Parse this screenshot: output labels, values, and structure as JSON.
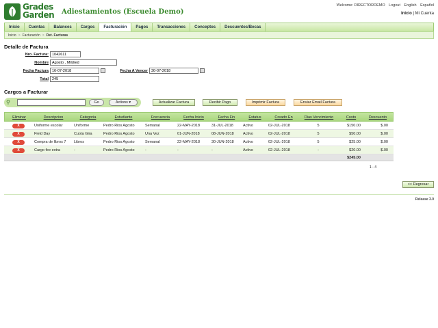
{
  "logo": {
    "line1": "Grades",
    "line2": "Garden"
  },
  "app_title": "Adiestamientos (Escuela Demo)",
  "topbar": {
    "welcome": "Welcome: DIRECTORDEMO",
    "logout": "Logout",
    "english": "English",
    "espanol": "Español",
    "inicio": "Inicio",
    "sep": "|",
    "mi_cuenta": "Mi Cuenta"
  },
  "nav": [
    "Inicio",
    "Cuentas",
    "Balances",
    "Cargos",
    "Facturación",
    "Pagos",
    "Transacciones",
    "Conceptos",
    "Descuentos/Becas"
  ],
  "nav_active": "Facturación",
  "breadcrumb": [
    "Inicio",
    "Facturación",
    "Det. Facturas"
  ],
  "breadcrumb_sep": ">",
  "detalle": {
    "title": "Detalle de Factura",
    "nro_label": "Nro. Factura:",
    "nro_value": "1042611",
    "nombre_label": "Nombre",
    "nombre_value": "Agosto , Mildred",
    "fecha_label": "Fecha Factura",
    "fecha_value": "16-07-2018",
    "vence_label": "Fecha A Vencer",
    "vence_value": "30-07-2018",
    "total_label": "Total",
    "total_value": "245"
  },
  "cargos": {
    "title": "Cargos a Facturar",
    "go": "Go",
    "actions": "Actions ▾",
    "buttons": {
      "actualizar": "Actualizar Factura",
      "recibir": "Recibir Pago",
      "imprimir": "Imprimir Factura",
      "email": "Enviar Email Factura"
    }
  },
  "grid": {
    "headers": [
      "Eliminar",
      "Descripcion",
      "Categoria",
      "Estudiante",
      "Frecuencia",
      "Fecha Inicio",
      "Fecha Fin",
      "Estatus",
      "Creado En",
      "Dias Vencimiento",
      "Costo",
      "Descuento"
    ],
    "delete_label": "X",
    "rows": [
      [
        "Uniforme escolar",
        "Uniforme",
        "Pedro Rios Agosto",
        "Semanal",
        "22-MAY-2018",
        "31-JUL-2018",
        "Activo",
        "02-JUL-2018",
        "5",
        "$150.00",
        "$.00"
      ],
      [
        "Field Day",
        "Cuota Gira",
        "Pedro Rios Agosto",
        "Una Vez",
        "01-JUN-2018",
        "08-JUN-2018",
        "Activo",
        "02-JUL-2018",
        "5",
        "$50.00",
        "$.00"
      ],
      [
        "Compra de libros 7",
        "Libros",
        "Pedro Rios Agosto",
        "Semanal",
        "22-MAY-2018",
        "30-JUN-2018",
        "Activo",
        "02-JUL-2018",
        "5",
        "$25.00",
        "$.00"
      ],
      [
        "Cargo fee extra",
        "-",
        "Pedro Rios Agosto",
        "-",
        "-",
        "-",
        "Activo",
        "02-JUL-2018",
        "-",
        "$20.00",
        "$.00"
      ]
    ],
    "total": "$245.00",
    "pager": "1 - 4"
  },
  "back": "<< Regresar",
  "release": "Release 3.0",
  "colors": {
    "brand_green": "#2f7d2f",
    "nav_green": "#c7e6a2",
    "delete_red": "#e04a3a"
  }
}
